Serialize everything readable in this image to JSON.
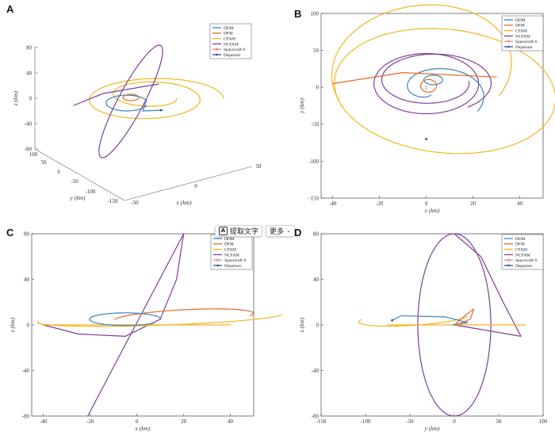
{
  "overlay": {
    "extract_label": "提取文字",
    "more_label": "更多",
    "extract_icon": "text-recognition-icon",
    "more_icon": "chevron-down-icon"
  },
  "colors": {
    "DDM": "#3b82c0",
    "DFM": "#e06a2c",
    "CFAM": "#f2b51e",
    "NCFAM": "#7f3f98",
    "Spacecraft-S": "#e78c8c",
    "Departure": "#2f4b8c"
  },
  "chart_data": [
    {
      "panel": "A",
      "type": "line3d",
      "xlabel": "x (km)",
      "ylabel": "y (km)",
      "zlabel": "z (km)",
      "x_ticks": [
        "-50",
        "0",
        "50"
      ],
      "y_ticks": [
        "-150",
        "-100",
        "-50",
        "0",
        "50",
        "100"
      ],
      "z_ticks": [
        "80",
        "40",
        "0",
        "-40",
        "-80"
      ],
      "legend": [
        "DDM",
        "DFM",
        "CFAM",
        "NCFAM",
        "Spacecraft-S",
        "Departure"
      ]
    },
    {
      "panel": "B",
      "type": "line",
      "xlabel": "x (km)",
      "ylabel": "y (km)",
      "xlim": [
        -45,
        50
      ],
      "ylim": [
        -150,
        100
      ],
      "x_ticks": [
        "-40",
        "-20",
        "0",
        "20",
        "40"
      ],
      "y_ticks": [
        "100",
        "50",
        "0",
        "-50",
        "-100",
        "-150"
      ],
      "legend": [
        "DDM",
        "DFM",
        "CFAM",
        "NCFAM",
        "Spacecraft-S",
        "Departure"
      ],
      "grid": false
    },
    {
      "panel": "C",
      "type": "line",
      "xlabel": "x (km)",
      "ylabel": "z (km)",
      "xlim": [
        -45,
        50
      ],
      "ylim": [
        -80,
        80
      ],
      "x_ticks": [
        "-40",
        "-20",
        "0",
        "20",
        "40"
      ],
      "y_ticks": [
        "80",
        "40",
        "0",
        "-40",
        "-80"
      ],
      "legend": [
        "DDM",
        "DFM",
        "CFAM",
        "NCFAM",
        "Spacecraft-S",
        "Departure"
      ],
      "grid": false
    },
    {
      "panel": "D",
      "type": "line",
      "xlabel": "y (km)",
      "ylabel": "z (km)",
      "xlim": [
        -150,
        100
      ],
      "ylim": [
        -80,
        80
      ],
      "x_ticks": [
        "-150",
        "-100",
        "-50",
        "0",
        "50",
        "100"
      ],
      "y_ticks": [
        "80",
        "40",
        "0",
        "-40",
        "-80"
      ],
      "legend": [
        "DDM",
        "DFM",
        "CFAM",
        "NCFAM",
        "Spacecraft-S",
        "Departure"
      ],
      "grid": false
    }
  ]
}
